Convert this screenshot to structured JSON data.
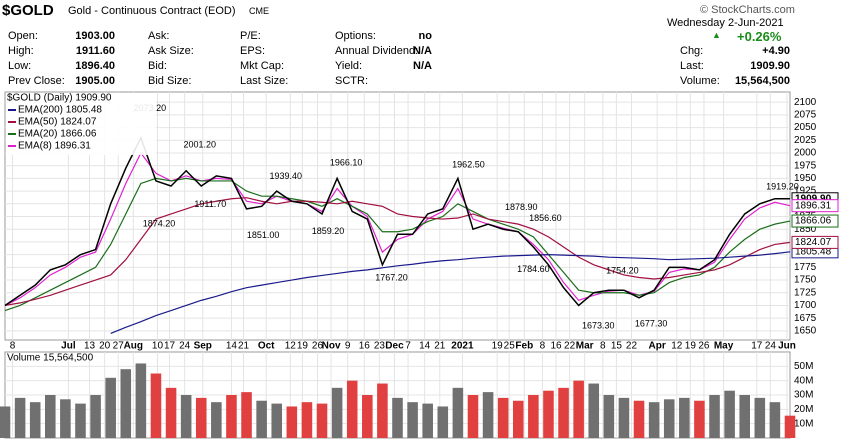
{
  "quote": {
    "symbol": "$GOLD",
    "description": "Gold - Continuous Contract (EOD)",
    "exchange": "CME",
    "copyright": "© StockCharts.com",
    "fields": [
      {
        "label": "Open:",
        "value": "1903.00"
      },
      {
        "label": "High:",
        "value": "1911.60"
      },
      {
        "label": "Low:",
        "value": "1896.40"
      },
      {
        "label": "Prev Close:",
        "value": "1905.00"
      },
      {
        "label": "Ask:"
      },
      {
        "label": "Ask Size:"
      },
      {
        "label": "Bid:"
      },
      {
        "label": "Bid Size:"
      },
      {
        "label": "P/E:"
      },
      {
        "label": "EPS:"
      },
      {
        "label": "Mkt Cap:"
      },
      {
        "label": "Last Size:"
      },
      {
        "label": "Options:",
        "value": "no"
      },
      {
        "label": "Annual Dividend:",
        "value": "N/A"
      },
      {
        "label": "Yield:",
        "value": "N/A"
      },
      {
        "label": "SCTR:"
      }
    ],
    "date": "Wednesday  2-Jun-2021",
    "change_pct": "+0.26%",
    "right": [
      {
        "label": "Chg:",
        "value": "+4.90"
      },
      {
        "label": "Last:",
        "value": "1909.90"
      },
      {
        "label": "Volume:",
        "value": "15,564,500"
      }
    ]
  },
  "chart_data": {
    "type": "line",
    "grid": true,
    "xlim": [
      0,
      52
    ],
    "xticks": [
      {
        "value": 0.5,
        "label": "8"
      },
      {
        "value": 4.2,
        "label": "Jul"
      },
      {
        "value": 5.6,
        "label": "13"
      },
      {
        "value": 6.6,
        "label": "20"
      },
      {
        "value": 7.5,
        "label": "27"
      },
      {
        "value": 8.5,
        "label": "Aug"
      },
      {
        "value": 10.1,
        "label": "10"
      },
      {
        "value": 10.9,
        "label": "17"
      },
      {
        "value": 11.9,
        "label": "24"
      },
      {
        "value": 13.1,
        "label": "Sep"
      },
      {
        "value": 15,
        "label": "14"
      },
      {
        "value": 15.8,
        "label": "21"
      },
      {
        "value": 17.3,
        "label": "Oct"
      },
      {
        "value": 18.9,
        "label": "12"
      },
      {
        "value": 19.7,
        "label": "19"
      },
      {
        "value": 20.7,
        "label": "26"
      },
      {
        "value": 21.6,
        "label": "Nov"
      },
      {
        "value": 22.7,
        "label": "9"
      },
      {
        "value": 23.8,
        "label": "16"
      },
      {
        "value": 24.8,
        "label": "23"
      },
      {
        "value": 25.8,
        "label": "Dec"
      },
      {
        "value": 26.7,
        "label": "7"
      },
      {
        "value": 27.8,
        "label": "14"
      },
      {
        "value": 28.8,
        "label": "21"
      },
      {
        "value": 30.3,
        "label": "2021"
      },
      {
        "value": 32.6,
        "label": "19"
      },
      {
        "value": 33.4,
        "label": "25"
      },
      {
        "value": 34.4,
        "label": "Feb"
      },
      {
        "value": 35.6,
        "label": "8"
      },
      {
        "value": 36.5,
        "label": "16"
      },
      {
        "value": 37.4,
        "label": "22"
      },
      {
        "value": 38.4,
        "label": "Mar"
      },
      {
        "value": 39.6,
        "label": "8"
      },
      {
        "value": 40.5,
        "label": "15"
      },
      {
        "value": 41.5,
        "label": "22"
      },
      {
        "value": 43.2,
        "label": "Apr"
      },
      {
        "value": 44.5,
        "label": "12"
      },
      {
        "value": 45.4,
        "label": "19"
      },
      {
        "value": 46.3,
        "label": "26"
      },
      {
        "value": 47.6,
        "label": "May"
      },
      {
        "value": 49.8,
        "label": "17"
      },
      {
        "value": 50.7,
        "label": "24"
      },
      {
        "value": 51.8,
        "label": "Jun"
      }
    ],
    "ylim": [
      1632,
      2120
    ],
    "yticks": [
      1650,
      1675,
      1700,
      1725,
      1750,
      1775,
      1800,
      1825,
      1850,
      1875,
      1900,
      1925,
      1950,
      1975,
      2000,
      2025,
      2050,
      2075,
      2100
    ],
    "series": [
      {
        "name": "$GOLD (Daily) 1909.90",
        "color": "#000000",
        "last_label": "1909.90",
        "values": [
          1700,
          1720,
          1740,
          1770,
          1780,
          1800,
          1810,
          1900,
          1970,
          2030,
          1945,
          1935,
          1965,
          1935,
          1955,
          1950,
          1890,
          1895,
          1925,
          1905,
          1900,
          1880,
          1950,
          1885,
          1870,
          1780,
          1840,
          1840,
          1880,
          1890,
          1950,
          1850,
          1860,
          1850,
          1845,
          1815,
          1780,
          1735,
          1700,
          1725,
          1730,
          1730,
          1715,
          1730,
          1775,
          1775,
          1770,
          1790,
          1840,
          1880,
          1900,
          1910,
          1909.9
        ]
      },
      {
        "name": "EMA(200) 1805.48",
        "color": "#1a1a8c",
        "last_label": "1805.48",
        "values": [
          null,
          null,
          null,
          null,
          null,
          null,
          null,
          1645,
          1657,
          1668,
          1680,
          1690,
          1700,
          1710,
          1718,
          1727,
          1735,
          1740,
          1745,
          1750,
          1755,
          1759,
          1763,
          1767,
          1770,
          1774,
          1778,
          1781,
          1785,
          1788,
          1790,
          1793,
          1795,
          1797,
          1798,
          1799,
          1800,
          1799,
          1798,
          1797,
          1795,
          1794,
          1793,
          1792,
          1790,
          1791,
          1792,
          1793,
          1795,
          1797,
          1799,
          1802,
          1805.48
        ]
      },
      {
        "name": "EMA(50) 1824.07",
        "color": "#a01040",
        "last_label": "1824.07",
        "values": [
          1700,
          1705,
          1712,
          1720,
          1730,
          1740,
          1750,
          1760,
          1790,
          1830,
          1870,
          1880,
          1890,
          1900,
          1905,
          1910,
          1912,
          1905,
          1900,
          1905,
          1905,
          1903,
          1900,
          1905,
          1900,
          1895,
          1880,
          1875,
          1872,
          1870,
          1872,
          1880,
          1870,
          1865,
          1860,
          1850,
          1835,
          1815,
          1795,
          1780,
          1770,
          1760,
          1755,
          1752,
          1755,
          1760,
          1765,
          1770,
          1780,
          1795,
          1810,
          1820,
          1824.07
        ]
      },
      {
        "name": "EMA(20) 1866.06",
        "color": "#1a6e1a",
        "last_label": "1866.06",
        "values": [
          1690,
          1700,
          1715,
          1730,
          1745,
          1760,
          1775,
          1820,
          1880,
          1940,
          1950,
          1945,
          1950,
          1945,
          1945,
          1945,
          1925,
          1915,
          1915,
          1910,
          1905,
          1895,
          1910,
          1895,
          1880,
          1845,
          1845,
          1850,
          1865,
          1875,
          1900,
          1885,
          1870,
          1860,
          1850,
          1835,
          1800,
          1765,
          1730,
          1725,
          1725,
          1725,
          1720,
          1725,
          1745,
          1755,
          1760,
          1775,
          1805,
          1830,
          1850,
          1860,
          1866.06
        ]
      },
      {
        "name": "EMA(8) 1896.31",
        "color": "#e020d0",
        "last_label": "1896.31",
        "values": [
          1700,
          1715,
          1735,
          1760,
          1775,
          1795,
          1805,
          1870,
          1940,
          2000,
          1960,
          1945,
          1955,
          1945,
          1950,
          1948,
          1905,
          1900,
          1915,
          1905,
          1900,
          1885,
          1930,
          1895,
          1875,
          1805,
          1830,
          1840,
          1870,
          1885,
          1930,
          1870,
          1860,
          1852,
          1845,
          1820,
          1790,
          1745,
          1710,
          1720,
          1728,
          1730,
          1720,
          1728,
          1765,
          1772,
          1770,
          1785,
          1830,
          1870,
          1892,
          1903,
          1896.31
        ]
      }
    ],
    "annotations": [
      {
        "label": "2073.20",
        "x": 9.6,
        "value": 2073.2
      },
      {
        "label": "2001.20",
        "x": 12.9,
        "value": 2001.2
      },
      {
        "label": "1874.20",
        "x": 10.2,
        "value": 1874.2
      },
      {
        "label": "1911.70",
        "x": 13.6,
        "value": 1911.7
      },
      {
        "label": "1851.00",
        "x": 17.1,
        "value": 1851
      },
      {
        "label": "1939.40",
        "x": 18.6,
        "value": 1939.4
      },
      {
        "label": "1966.10",
        "x": 22.6,
        "value": 1966.1
      },
      {
        "label": "1859.20",
        "x": 21.4,
        "value": 1859.2
      },
      {
        "label": "1767.20",
        "x": 25.6,
        "value": 1767.2
      },
      {
        "label": "1962.50",
        "x": 30.7,
        "value": 1962.5
      },
      {
        "label": "1878.90",
        "x": 34.2,
        "value": 1878.9
      },
      {
        "label": "1856.60",
        "x": 35.8,
        "value": 1856.6
      },
      {
        "label": "1784.60",
        "x": 35,
        "value": 1784.6
      },
      {
        "label": "1754.20",
        "x": 40.9,
        "value": 1754.2
      },
      {
        "label": "1673.30",
        "x": 39.3,
        "value": 1673.3
      },
      {
        "label": "1677.30",
        "x": 42.8,
        "value": 1677.3
      },
      {
        "label": "1919.20",
        "x": 51.5,
        "value": 1919.2
      }
    ],
    "volume": {
      "name": "Volume 15,564,500",
      "up_color": "#707070",
      "down_color": "#e04040",
      "ylim": [
        0,
        60000000
      ],
      "yticks": [
        {
          "value": 10000000,
          "label": "10M"
        },
        {
          "value": 20000000,
          "label": "20M"
        },
        {
          "value": 30000000,
          "label": "30M"
        },
        {
          "value": 40000000,
          "label": "40M"
        },
        {
          "value": 50000000,
          "label": "50M"
        }
      ],
      "values": [
        22000000,
        28000000,
        25000000,
        30000000,
        27000000,
        24000000,
        30000000,
        42000000,
        48000000,
        52000000,
        45000000,
        35000000,
        30000000,
        28000000,
        25000000,
        30000000,
        32000000,
        26000000,
        24000000,
        22000000,
        25000000,
        24000000,
        35000000,
        40000000,
        30000000,
        38000000,
        28000000,
        25000000,
        24000000,
        22000000,
        35000000,
        30000000,
        32000000,
        28000000,
        26000000,
        30000000,
        33000000,
        35000000,
        40000000,
        38000000,
        30000000,
        28000000,
        26000000,
        25000000,
        27000000,
        28000000,
        26000000,
        30000000,
        33000000,
        30000000,
        28000000,
        25000000,
        15564500
      ]
    }
  }
}
